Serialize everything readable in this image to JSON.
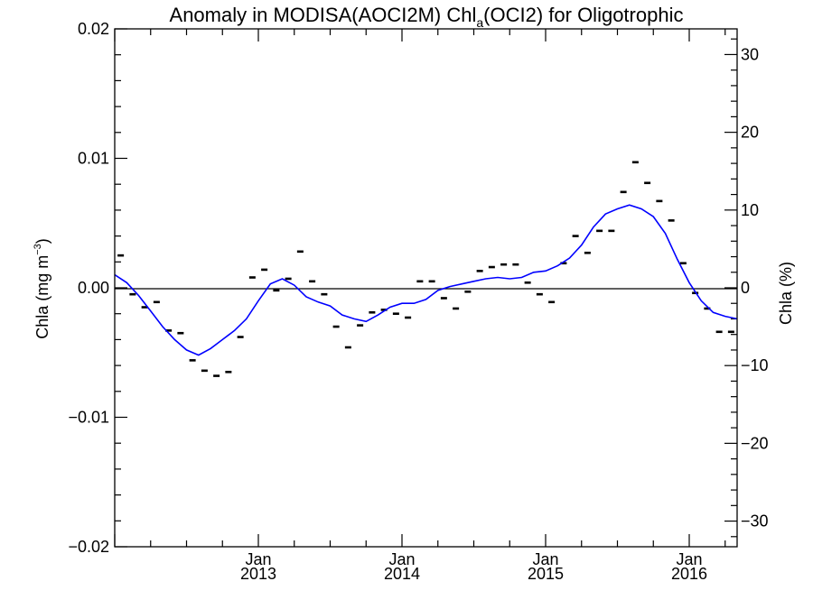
{
  "chart_data": {
    "type": "line",
    "title": "Anomaly in MODISA(AOCI2M) Chl",
    "title_subscript": "a",
    "title_suffix": "(OCI2) for Oligotrophic",
    "ylabel_left": "Chla (mg m",
    "ylabel_left_superscript": "−3",
    "ylabel_left_suffix": ")",
    "ylabel_right": "Chla (%)",
    "ylim_left": [
      -0.02,
      0.02
    ],
    "ylim_right": [
      -33.3,
      33.3
    ],
    "y_ticks_left": [
      "0.02",
      "0.01",
      "0.00",
      "−0.01",
      "−0.02"
    ],
    "y_ticks_right": [
      "30",
      "20",
      "10",
      "0",
      "−10",
      "−20",
      "−30"
    ],
    "x_ticks": [
      {
        "month": "Jan",
        "year": "2013"
      },
      {
        "month": "Jan",
        "year": "2014"
      },
      {
        "month": "Jan",
        "year": "2015"
      },
      {
        "month": "Jan",
        "year": "2016"
      }
    ],
    "xlim": [
      "2012-01-01",
      "2016-05-01"
    ],
    "zero_line": true,
    "series": [
      {
        "kind": "monthly-anomaly",
        "marker": "dash",
        "color": "#000000",
        "x": [
          "2012-01",
          "2012-02",
          "2012-03",
          "2012-04",
          "2012-05",
          "2012-06",
          "2012-07",
          "2012-08",
          "2012-09",
          "2012-10",
          "2012-11",
          "2012-12",
          "2013-01",
          "2013-02",
          "2013-03",
          "2013-04",
          "2013-05",
          "2013-06",
          "2013-07",
          "2013-08",
          "2013-09",
          "2013-10",
          "2013-11",
          "2013-12",
          "2014-01",
          "2014-02",
          "2014-03",
          "2014-04",
          "2014-05",
          "2014-06",
          "2014-07",
          "2014-08",
          "2014-09",
          "2014-10",
          "2014-11",
          "2014-12",
          "2015-01",
          "2015-02",
          "2015-03",
          "2015-04",
          "2015-05",
          "2015-06",
          "2015-07",
          "2015-08",
          "2015-09",
          "2015-10",
          "2015-11",
          "2015-12",
          "2016-01",
          "2016-02",
          "2016-03",
          "2016-04"
        ],
        "y": [
          0.0025,
          -0.0005,
          -0.0015,
          -0.0011,
          -0.0033,
          -0.0035,
          -0.0056,
          -0.0064,
          -0.0068,
          -0.0065,
          -0.0038,
          0.0008,
          0.0014,
          -0.0002,
          0.0007,
          0.0028,
          0.0005,
          -0.0005,
          -0.003,
          -0.0046,
          -0.0029,
          -0.0019,
          -0.0017,
          -0.002,
          -0.0023,
          0.0005,
          0.0005,
          -0.0008,
          -0.0016,
          -0.0003,
          0.0013,
          0.0016,
          0.0018,
          0.0018,
          0.0004,
          -0.0005,
          -0.0011,
          0.0019,
          0.004,
          0.0027,
          0.0044,
          0.0044,
          0.0074,
          0.0097,
          0.0081,
          0.0067,
          0.0052,
          0.0019,
          -0.0004,
          -0.0016,
          -0.0034,
          -0.0034
        ]
      },
      {
        "kind": "smoothed",
        "marker": "line",
        "color": "#0000ff",
        "x": [
          "2012-01",
          "2012-02",
          "2012-03",
          "2012-04",
          "2012-05",
          "2012-06",
          "2012-07",
          "2012-08",
          "2012-09",
          "2012-10",
          "2012-11",
          "2012-12",
          "2013-01",
          "2013-02",
          "2013-03",
          "2013-04",
          "2013-05",
          "2013-06",
          "2013-07",
          "2013-08",
          "2013-09",
          "2013-10",
          "2013-11",
          "2013-12",
          "2014-01",
          "2014-02",
          "2014-03",
          "2014-04",
          "2014-05",
          "2014-06",
          "2014-07",
          "2014-08",
          "2014-09",
          "2014-10",
          "2014-11",
          "2014-12",
          "2015-01",
          "2015-02",
          "2015-03",
          "2015-04",
          "2015-05",
          "2015-06",
          "2015-07",
          "2015-08",
          "2015-09",
          "2015-10",
          "2015-11",
          "2015-12",
          "2016-01",
          "2016-02",
          "2016-03",
          "2016-04",
          "2016-05"
        ],
        "y": [
          0.001,
          0.0004,
          -0.0006,
          -0.0018,
          -0.003,
          -0.004,
          -0.0048,
          -0.0052,
          -0.0047,
          -0.004,
          -0.0033,
          -0.0024,
          -0.001,
          0.0003,
          0.0007,
          0.0002,
          -0.0007,
          -0.0011,
          -0.0014,
          -0.0021,
          -0.0024,
          -0.0026,
          -0.0021,
          -0.0015,
          -0.0012,
          -0.0012,
          -0.0009,
          -0.0002,
          0.0001,
          0.0003,
          0.0005,
          0.0007,
          0.0008,
          0.0007,
          0.0008,
          0.0012,
          0.0013,
          0.0017,
          0.0023,
          0.0033,
          0.0047,
          0.0057,
          0.0061,
          0.0064,
          0.0061,
          0.0055,
          0.0042,
          0.0022,
          0.0004,
          -0.001,
          -0.0019,
          -0.0022,
          -0.0024
        ]
      }
    ]
  }
}
